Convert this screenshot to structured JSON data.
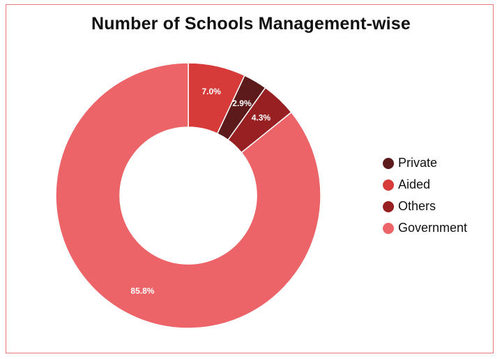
{
  "chart_data": {
    "type": "pie",
    "title": "Number of Schools Management-wise",
    "categories": [
      "Aided",
      "Private",
      "Others",
      "Government"
    ],
    "values": [
      7.0,
      2.9,
      4.3,
      85.8
    ],
    "value_labels": [
      "7.0%",
      "2.9%",
      "4.3%",
      "85.8%"
    ],
    "colors": [
      "#d63a39",
      "#5c1a1b",
      "#981f22",
      "#ec6468"
    ],
    "donut": true,
    "legend_position": "right",
    "legend": [
      {
        "label": "Private",
        "color": "#5c1a1b"
      },
      {
        "label": "Aided",
        "color": "#d63a39"
      },
      {
        "label": "Others",
        "color": "#981f22"
      },
      {
        "label": "Government",
        "color": "#ec6468"
      }
    ]
  }
}
